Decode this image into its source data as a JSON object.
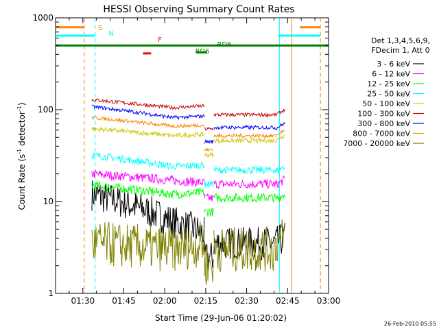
{
  "chart_data": {
    "type": "line",
    "title": "HESSI Observing Summary Count Rates",
    "xlabel": "Start Time (29-Jun-06 01:20:02)",
    "ylabel_main": "Count Rate (s",
    "ylabel_sup1": "-1",
    "ylabel_mid": " detector",
    "ylabel_sup2": "-1",
    "ylabel_end": ")",
    "yscale": "log",
    "ylim": [
      1,
      1000
    ],
    "xlim_minutes": [
      0,
      100
    ],
    "x_ticks": [
      {
        "m": 10,
        "label": "01:30"
      },
      {
        "m": 25,
        "label": "01:45"
      },
      {
        "m": 40,
        "label": "02:00"
      },
      {
        "m": 55,
        "label": "02:15"
      },
      {
        "m": 70,
        "label": "02:30"
      },
      {
        "m": 85,
        "label": "02:45"
      },
      {
        "m": 100,
        "label": "03:00"
      }
    ],
    "y_ticks": [
      {
        "v": 1,
        "label": "1"
      },
      {
        "v": 10,
        "label": "10"
      },
      {
        "v": 100,
        "label": "100"
      },
      {
        "v": 1000,
        "label": "1000"
      }
    ],
    "legend_header": [
      "Det 1,3,4,5,6,9,",
      "FDecim 1, Att 0"
    ],
    "series": [
      {
        "name": "3 - 6 keV",
        "color": "#000000",
        "level": [
          12,
          8,
          6,
          4.5,
          3.5,
          3.5
        ],
        "noise": 0.18
      },
      {
        "name": "6 - 12 keV",
        "color": "#ff00ff",
        "level": [
          20,
          18,
          17,
          16,
          15.5,
          15
        ],
        "noise": 0.05
      },
      {
        "name": "12 - 25 keV",
        "color": "#00ff00",
        "level": [
          15,
          13,
          12,
          12.5,
          11,
          10.5
        ],
        "noise": 0.05
      },
      {
        "name": "25 - 50 keV",
        "color": "#00ffff",
        "level": [
          32,
          27,
          24,
          25,
          22,
          21
        ],
        "noise": 0.04
      },
      {
        "name": "50 - 100 keV",
        "color": "#c8c800",
        "level": [
          62,
          55,
          52,
          54,
          46,
          46
        ],
        "noise": 0.025
      },
      {
        "name": "100 - 300 keV",
        "color": "#c80000",
        "level": [
          128,
          112,
          105,
          110,
          88,
          87
        ],
        "noise": 0.02
      },
      {
        "name": "300 - 800 keV",
        "color": "#0000ff",
        "level": [
          108,
          90,
          82,
          85,
          64,
          62
        ],
        "noise": 0.02
      },
      {
        "name": "800 - 7000 keV",
        "color": "#ff8000",
        "level": [
          82,
          70,
          66,
          68,
          52,
          52
        ],
        "noise": 0.02
      },
      {
        "name": "7000 - 20000 keV",
        "color": "#808000",
        "level": [
          3.5,
          3,
          3,
          3.5,
          3,
          3.5
        ],
        "noise": 0.25
      }
    ],
    "flags": [
      {
        "label": "S",
        "color": "#ff8000",
        "y": 790,
        "segments": [
          [
            0,
            10.5
          ],
          [
            89.5,
            97
          ]
        ]
      },
      {
        "label": "N",
        "color": "#00ffff",
        "y": 640,
        "segments": [
          [
            0,
            14.5
          ],
          [
            81.5,
            97
          ]
        ]
      },
      {
        "label": "F",
        "color": "#ff0000",
        "y": 410,
        "segments": [
          [
            32,
            35
          ]
        ]
      },
      {
        "label": "RD6",
        "color": "#008000",
        "y": 500,
        "segments": [
          [
            0,
            100
          ]
        ]
      },
      {
        "label": "RD6",
        "color": "#008000",
        "y": 420,
        "segments": [
          [
            51.5,
            55.5
          ]
        ]
      }
    ],
    "vertical_lines": [
      {
        "m": 10.5,
        "color": "#ff8000",
        "dash": true
      },
      {
        "m": 14.5,
        "color": "#00ffff",
        "dash": true
      },
      {
        "m": 82,
        "color": "#00ffff",
        "dash": false
      },
      {
        "m": 86.5,
        "color": "#ff8000",
        "dash": false
      },
      {
        "m": 97,
        "color": "#00ffff",
        "dash": true
      },
      {
        "m": 97,
        "color": "#ff8000",
        "dash": true
      }
    ],
    "footer": "26-Feb-2010 05:55"
  }
}
